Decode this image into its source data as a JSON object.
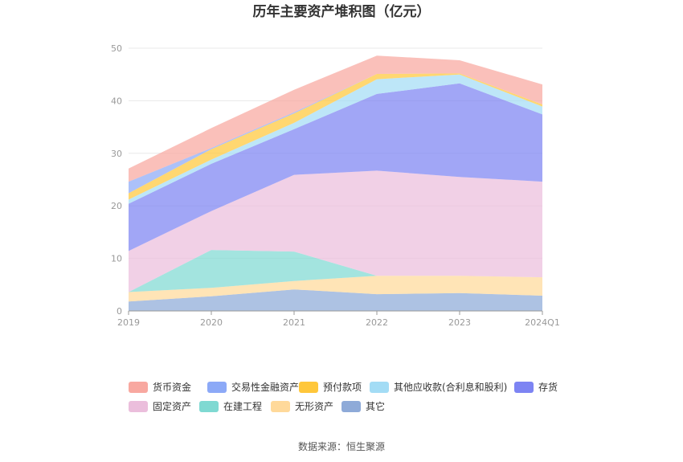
{
  "chart_data": {
    "type": "area",
    "title": "历年主要资产堆积图（亿元）",
    "source": "数据来源：恒生聚源",
    "categories": [
      "2019",
      "2020",
      "2021",
      "2022",
      "2023",
      "2024Q1"
    ],
    "ylim": [
      0,
      50
    ],
    "yticks": [
      "0",
      "10",
      "20",
      "30",
      "40",
      "50"
    ],
    "grid": true,
    "legend_position": "bottom",
    "series": [
      {
        "name": "其它",
        "color": "#8eaad8",
        "values": [
          1.8,
          2.8,
          4.1,
          3.2,
          3.4,
          2.9
        ]
      },
      {
        "name": "无形资产",
        "color": "#ffd99a",
        "values": [
          1.8,
          1.6,
          1.6,
          3.5,
          3.3,
          3.5
        ]
      },
      {
        "name": "在建工程",
        "color": "#7fd9d2",
        "values": [
          0.0,
          7.2,
          5.6,
          0.0,
          0.0,
          0.0
        ]
      },
      {
        "name": "固定资产",
        "color": "#ebbedc",
        "values": [
          7.8,
          7.4,
          14.6,
          20.0,
          18.8,
          18.2
        ]
      },
      {
        "name": "存货",
        "color": "#7d84f3",
        "values": [
          9.0,
          9.0,
          8.7,
          14.6,
          17.8,
          12.8
        ]
      },
      {
        "name": "其他应收款(合利息和股利)",
        "color": "#a3dcf5",
        "values": [
          0.8,
          0.8,
          1.2,
          2.8,
          1.7,
          1.5
        ]
      },
      {
        "name": "预付款项",
        "color": "#ffc73a",
        "values": [
          1.2,
          2.0,
          1.8,
          1.0,
          0.2,
          0.4
        ]
      },
      {
        "name": "交易性金融资产",
        "color": "#8ca9f7",
        "values": [
          2.2,
          0.2,
          0.2,
          0.0,
          0.0,
          0.0
        ]
      },
      {
        "name": "货币资金",
        "color": "#f8a8a0",
        "values": [
          2.5,
          3.8,
          4.3,
          3.5,
          2.5,
          3.8
        ]
      }
    ],
    "legend_order": [
      "货币资金",
      "交易性金融资产",
      "预付款项",
      "其他应收款(合利息和股利)",
      "存货",
      "固定资产",
      "在建工程",
      "无形资产",
      "其它"
    ]
  }
}
